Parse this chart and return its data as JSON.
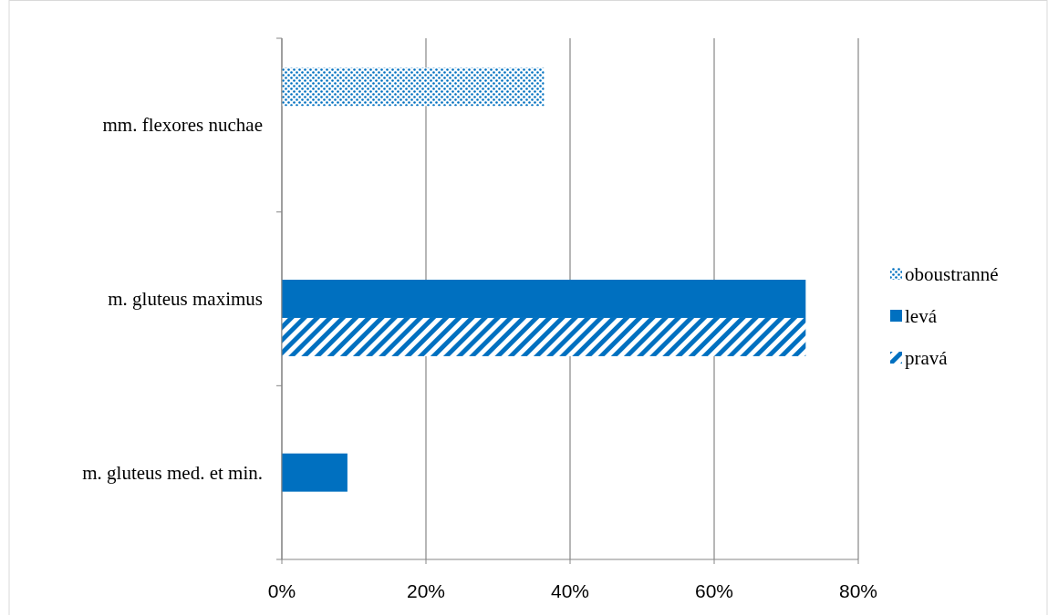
{
  "chart_data": {
    "type": "bar",
    "orientation": "horizontal",
    "categories": [
      "mm. flexores nuchae",
      "m. gluteus maximus",
      "m. gluteus med. et min."
    ],
    "series": [
      {
        "name": "oboustranné",
        "color": "#0070c0",
        "values": [
          36.4,
          null,
          null
        ]
      },
      {
        "name": "levá",
        "color": "#0070c0",
        "values": [
          null,
          72.7,
          9.1
        ]
      },
      {
        "name": "pravá",
        "color": "#0070c0",
        "values": [
          null,
          72.7,
          null
        ]
      }
    ],
    "xlim": [
      0,
      80
    ],
    "xticks": [
      {
        "value": 0,
        "label": "0%"
      },
      {
        "value": 20,
        "label": "20%"
      },
      {
        "value": 40,
        "label": "40%"
      },
      {
        "value": 60,
        "label": "60%"
      },
      {
        "value": 80,
        "label": "80%"
      }
    ],
    "grid": "x",
    "legend": "right"
  }
}
